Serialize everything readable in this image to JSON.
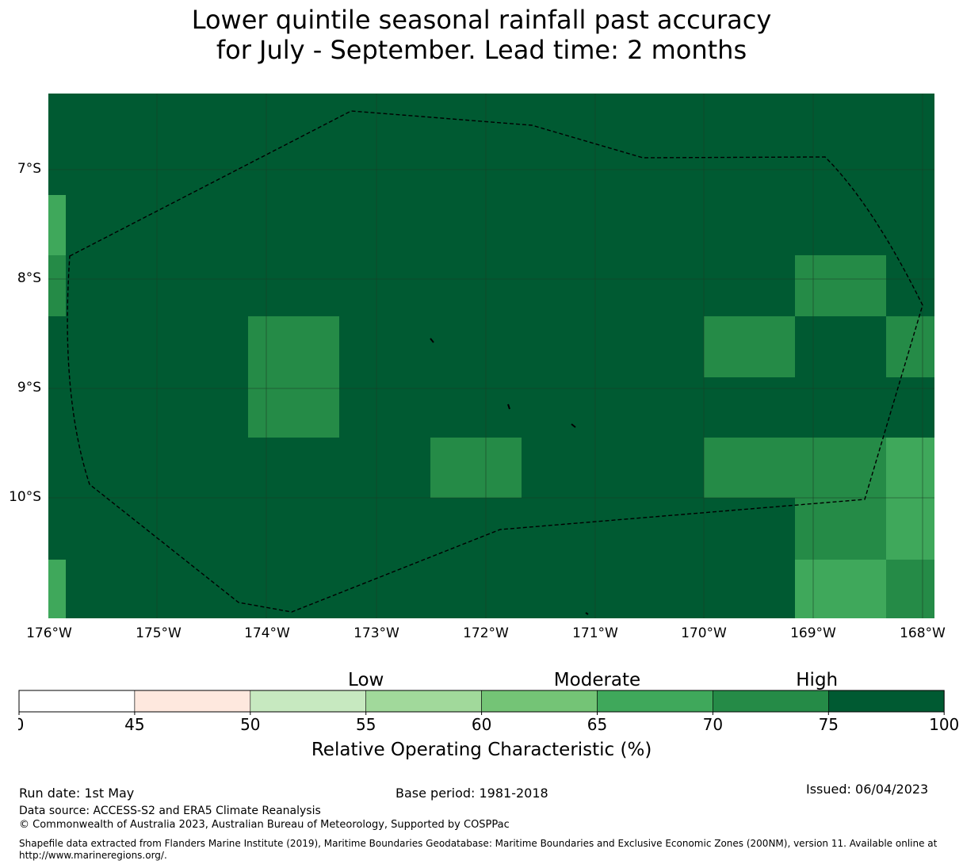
{
  "title": {
    "line1": "Lower quintile seasonal rainfall past accuracy",
    "line2": "for July - September. Lead time: 2 months"
  },
  "map": {
    "lat_labels": [
      "7°S",
      "8°S",
      "9°S",
      "10°S"
    ],
    "lon_labels": [
      "176°W",
      "175°W",
      "174°W",
      "173°W",
      "172°W",
      "171°W",
      "170°W",
      "169°W",
      "168°W"
    ],
    "cell_colors_by_roc": {
      "65-70": "#3fa85b",
      "70-75": "#258b47",
      "75-100": "#005a32"
    },
    "border_style": "dashed-black",
    "grid_lines": true
  },
  "colorbar": {
    "category_labels": [
      "Low",
      "Moderate",
      "High"
    ],
    "tick_labels": [
      "0",
      "45",
      "50",
      "55",
      "60",
      "65",
      "70",
      "75",
      "100"
    ],
    "colors": [
      "#ffffff",
      "#fee8de",
      "#c7e9c0",
      "#a1d99b",
      "#74c476",
      "#3fa85b",
      "#258b47",
      "#005a32"
    ],
    "axis_label": "Relative Operating Characteristic (%)"
  },
  "footer": {
    "run_date": "Run date: 1st May",
    "base_period": "Base period: 1981-2018",
    "issued": "Issued: 06/04/2023",
    "data_source": "Data source: ACCESS-S2 and ERA5 Climate Reanalysis",
    "copyright": "© Commonwealth of Australia 2023, Australian Bureau of Meteorology, Supported by COSPPac",
    "shapefile_note": "Shapefile data extracted from Flanders Marine Institute (2019), Maritime Boundaries Geodatabase: Maritime Boundaries and Exclusive Economic Zones (200NM), version 11. Available online at http://www.marineregions.org/."
  }
}
